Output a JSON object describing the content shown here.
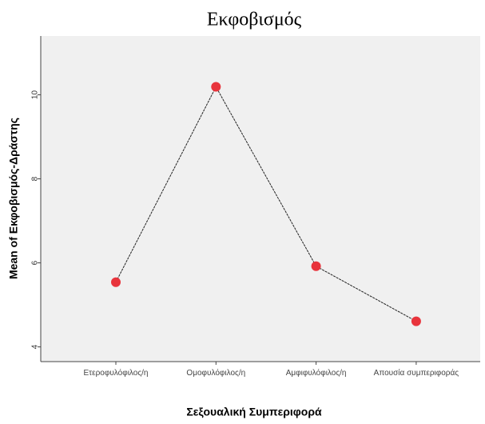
{
  "chart_data": {
    "type": "line",
    "title": "Εκφοβισμός",
    "x_label": "Σεξουαλική Συμπεριφορά",
    "y_label": "Mean of Εκφοβισμός-Δράστης",
    "categories": [
      "Ετεροφυλόφιλος/η",
      "Ομοφυλόφιλος/η",
      "Αμφιφυλόφιλος/η",
      "Απουσία συμπεριφοράς"
    ],
    "series": [
      {
        "name": "Mean",
        "color": "#e8343c",
        "values": [
          5.54,
          10.19,
          5.92,
          4.61
        ]
      }
    ],
    "ylim": [
      3.65,
      11.4
    ],
    "yticks": [
      4,
      6,
      8,
      10
    ],
    "grid": false
  }
}
